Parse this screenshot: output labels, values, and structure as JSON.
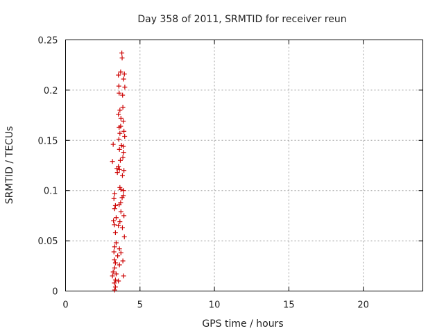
{
  "chart_data": {
    "type": "scatter",
    "title": "Day 358 of 2011, SRMTID for receiver reun",
    "xlabel": "GPS time / hours",
    "ylabel": "SRMTID / TECUs",
    "xlim": [
      0,
      24
    ],
    "ylim": [
      0,
      0.25
    ],
    "xticks": [
      "0",
      "5",
      "10",
      "15",
      "20"
    ],
    "xtick_values": [
      0,
      5,
      10,
      15,
      20
    ],
    "yticks": [
      "0",
      "0.05",
      "0.1",
      "0.15",
      "0.2",
      "0.25"
    ],
    "ytick_values": [
      0,
      0.05,
      0.1,
      0.15,
      0.2,
      0.25
    ],
    "grid": true,
    "marker": "+",
    "marker_color": "#cc0000",
    "series": [
      {
        "points": [
          [
            3.78,
            0.237
          ],
          [
            3.8,
            0.232
          ],
          [
            3.55,
            0.215
          ],
          [
            3.7,
            0.218
          ],
          [
            3.95,
            0.216
          ],
          [
            3.9,
            0.211
          ],
          [
            3.58,
            0.204
          ],
          [
            3.98,
            0.203
          ],
          [
            3.6,
            0.197
          ],
          [
            3.83,
            0.195
          ],
          [
            3.85,
            0.183
          ],
          [
            3.65,
            0.18
          ],
          [
            3.55,
            0.176
          ],
          [
            3.72,
            0.172
          ],
          [
            3.88,
            0.169
          ],
          [
            3.6,
            0.163
          ],
          [
            3.7,
            0.164
          ],
          [
            3.92,
            0.159
          ],
          [
            3.65,
            0.157
          ],
          [
            3.97,
            0.154
          ],
          [
            3.58,
            0.151
          ],
          [
            3.2,
            0.146
          ],
          [
            3.75,
            0.145
          ],
          [
            3.88,
            0.144
          ],
          [
            3.62,
            0.141
          ],
          [
            3.9,
            0.138
          ],
          [
            3.85,
            0.133
          ],
          [
            3.68,
            0.13
          ],
          [
            3.15,
            0.129
          ],
          [
            3.55,
            0.124
          ],
          [
            3.45,
            0.122
          ],
          [
            3.62,
            0.121
          ],
          [
            3.92,
            0.12
          ],
          [
            3.48,
            0.118
          ],
          [
            3.82,
            0.115
          ],
          [
            3.65,
            0.103
          ],
          [
            3.72,
            0.101
          ],
          [
            3.9,
            0.1
          ],
          [
            3.3,
            0.097
          ],
          [
            3.88,
            0.095
          ],
          [
            3.25,
            0.092
          ],
          [
            3.8,
            0.093
          ],
          [
            3.7,
            0.088
          ],
          [
            3.35,
            0.085
          ],
          [
            3.6,
            0.086
          ],
          [
            3.3,
            0.082
          ],
          [
            3.72,
            0.079
          ],
          [
            3.92,
            0.075
          ],
          [
            3.4,
            0.073
          ],
          [
            3.22,
            0.07
          ],
          [
            3.65,
            0.069
          ],
          [
            3.28,
            0.066
          ],
          [
            3.55,
            0.065
          ],
          [
            3.82,
            0.063
          ],
          [
            3.35,
            0.058
          ],
          [
            3.95,
            0.054
          ],
          [
            3.4,
            0.048
          ],
          [
            3.3,
            0.044
          ],
          [
            3.62,
            0.042
          ],
          [
            3.25,
            0.039
          ],
          [
            3.72,
            0.038
          ],
          [
            3.5,
            0.035
          ],
          [
            3.28,
            0.031
          ],
          [
            3.35,
            0.028
          ],
          [
            3.85,
            0.03
          ],
          [
            3.62,
            0.026
          ],
          [
            3.3,
            0.023
          ],
          [
            3.2,
            0.019
          ],
          [
            3.4,
            0.017
          ],
          [
            3.15,
            0.015
          ],
          [
            3.9,
            0.015
          ],
          [
            3.35,
            0.011
          ],
          [
            3.28,
            0.008
          ],
          [
            3.55,
            0.01
          ],
          [
            3.35,
            0.004
          ],
          [
            3.3,
            0.001
          ]
        ]
      }
    ]
  }
}
